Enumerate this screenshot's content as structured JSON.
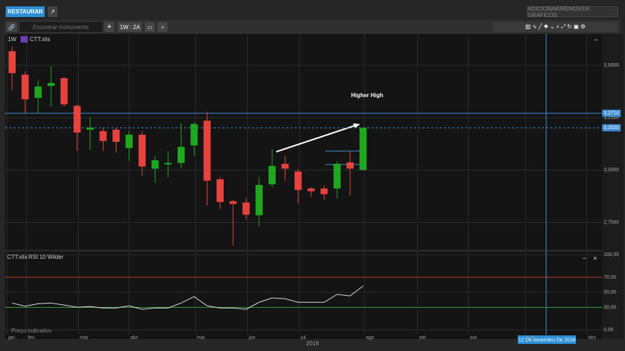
{
  "ui": {
    "restore_button": "RESTAURAR",
    "add_remove_button": "ADICIONAR/REMOVER GRÁFICOS",
    "search_placeholder": "Encontrar instrumento",
    "period_button": "1W : 2A",
    "price_note": "Preço indicativo",
    "crosshair_date": "12 De novembro De 2018",
    "year_label": "2018"
  },
  "chart_data": [
    {
      "type": "candlestick",
      "interval": "1W",
      "instrument": "CTT:xlis",
      "annotation": "Higher High",
      "categories": [
        null,
        null,
        null,
        null,
        null,
        null,
        null,
        null,
        null,
        null,
        null,
        null,
        null,
        null,
        null,
        null,
        null,
        null,
        null,
        null,
        null,
        null,
        null,
        null,
        null,
        null,
        null,
        null
      ],
      "open": [
        3.568,
        3.456,
        3.345,
        3.402,
        3.439,
        3.307,
        3.193,
        3.186,
        3.193,
        3.105,
        3.169,
        3.007,
        3.027,
        3.034,
        3.118,
        3.236,
        2.956,
        2.851,
        2.845,
        2.784,
        2.932,
        3.03,
        2.993,
        2.912,
        2.912,
        2.912,
        3.037,
        3.0
      ],
      "high": [
        3.591,
        3.473,
        3.429,
        3.497,
        3.446,
        3.314,
        3.253,
        3.203,
        3.203,
        3.186,
        3.186,
        3.068,
        3.091,
        3.226,
        3.23,
        3.277,
        2.966,
        2.858,
        2.865,
        2.966,
        3.101,
        3.068,
        3.007,
        2.919,
        2.926,
        3.041,
        3.091,
        3.202
      ],
      "low": [
        3.382,
        3.27,
        3.27,
        3.304,
        3.304,
        3.091,
        3.095,
        3.091,
        3.084,
        3.044,
        2.973,
        2.939,
        2.966,
        3.01,
        3.068,
        2.831,
        2.814,
        2.639,
        2.764,
        2.73,
        2.916,
        2.949,
        2.841,
        2.872,
        2.858,
        2.865,
        2.878,
        3.0
      ],
      "close": [
        3.463,
        3.338,
        3.399,
        3.416,
        3.314,
        3.179,
        3.203,
        3.139,
        3.135,
        3.169,
        3.017,
        3.047,
        3.034,
        3.111,
        3.22,
        2.949,
        2.848,
        2.838,
        2.787,
        2.929,
        3.02,
        3.007,
        2.905,
        2.899,
        2.885,
        3.03,
        3.007,
        3.202
      ],
      "up_color": "#1fa81f",
      "down_color": "#e8423f",
      "xlim": [
        -0.55,
        45.4
      ],
      "ylim": [
        2.62,
        3.65
      ],
      "yticks": [
        {
          "value": 2.75,
          "label": "2,7500"
        },
        {
          "value": 3.0,
          "label": "3,0000"
        },
        {
          "value": 3.25,
          "label": "3,2500"
        },
        {
          "value": 3.5,
          "label": "3,5000"
        }
      ],
      "grid": true,
      "levels": [
        {
          "value": 3.2714,
          "label": "3,2714",
          "style": "solid",
          "color": "#3f8fd6"
        },
        {
          "value": 3.202,
          "label": "3,2020",
          "style": "dashed",
          "color": "#3f8fd6"
        }
      ]
    },
    {
      "type": "line",
      "instrument": "CTT:xlis",
      "indicator": "RSI 10 Wilder",
      "values": [
        35.8,
        31.5,
        34.9,
        35.8,
        33.0,
        30.2,
        31.1,
        29.2,
        29.2,
        32.1,
        27.4,
        29.2,
        29.2,
        35.8,
        44.3,
        32.1,
        29.2,
        29.2,
        27.4,
        36.8,
        42.5,
        41.5,
        36.8,
        36.8,
        36.8,
        47.2,
        45.3,
        58.5
      ],
      "color": "#dddddd",
      "xlim": [
        -0.55,
        45.4
      ],
      "ylim": [
        -12,
        104
      ],
      "yticks": [
        {
          "value": 0,
          "label": "0,00"
        },
        {
          "value": 30,
          "label": "30,00"
        },
        {
          "value": 50,
          "label": "50,00"
        },
        {
          "value": 70,
          "label": "70,00"
        },
        {
          "value": 100,
          "label": "100,00"
        }
      ],
      "levels": [
        {
          "value": 70,
          "color": "#c0392b"
        },
        {
          "value": 30,
          "color": "#2e9e3e"
        }
      ],
      "xticks": [
        {
          "value": -0.4,
          "label": "jan"
        },
        {
          "value": 1.1,
          "label": "fev"
        },
        {
          "value": 5.1,
          "label": "mar"
        },
        {
          "value": 9.0,
          "label": "abr"
        },
        {
          "value": 14.1,
          "label": "mai"
        },
        {
          "value": 18.1,
          "label": "jun"
        },
        {
          "value": 22.1,
          "label": "jul"
        },
        {
          "value": 27.1,
          "label": "ago"
        },
        {
          "value": 31.2,
          "label": "set"
        },
        {
          "value": 35.1,
          "label": "out"
        },
        {
          "value": 39.5,
          "label": "nov"
        },
        {
          "value": 44.2,
          "label": "dez"
        }
      ]
    }
  ]
}
